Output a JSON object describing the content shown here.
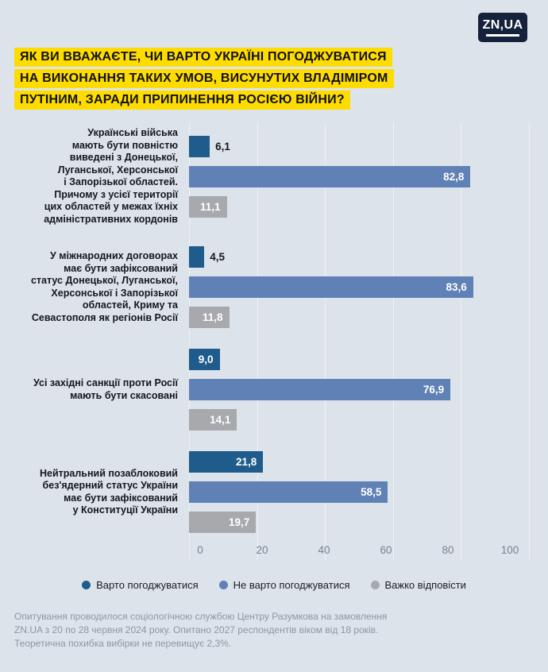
{
  "logo": {
    "text": "ZN,UA"
  },
  "title": {
    "highlight_color": "#ffdc00",
    "lines": [
      "ЯК ВИ ВВАЖАЄТЕ, ЧИ ВАРТО УКРАЇНІ ПОГОДЖУВАТИСЯ",
      "НА ВИКОНАННЯ ТАКИХ УМОВ, ВИСУНУТИХ ВЛАДІМІРОМ",
      "ПУТІНИМ, ЗАРАДИ ПРИПИНЕННЯ РОСІЄЮ ВІЙНИ?"
    ]
  },
  "chart_data": {
    "type": "bar",
    "orientation": "horizontal",
    "grid": true,
    "legend_position": "bottom",
    "inside_label_threshold": 8,
    "x_axis": {
      "min": 0,
      "max": 100,
      "ticks": [
        0,
        20,
        40,
        60,
        80,
        100
      ]
    },
    "categories": [
      "Українські війська мають бути повністю виведені з Донецької, Луганської, Херсонської і Запорізької областей. Причому з усієї території цих областей у межах їхніх адміністративних кордонів",
      "У міжнародних договорах має бути зафіксований статус Донецької, Луганської, Херсонської і Запорізької областей, Криму та Севастополя як регіонів Росії",
      "Усі західні санкції проти Росії мають бути скасовані",
      "Нейтральний позаблоковий без'ядерний статус України має бути зафіксований у Конституції України"
    ],
    "category_label_lines": [
      [
        "Українські війська",
        "мають бути повністю",
        "виведені з Донецької,",
        "Луганської, Херсонської",
        "і Запорізької областей.",
        "Причому з усієї території",
        "цих областей у межах їхніх",
        "адміністративних кордонів"
      ],
      [
        "У міжнародних договорах",
        "має бути зафіксований",
        "статус Донецької, Луганської,",
        "Херсонської і Запорізької",
        "областей, Криму та",
        "Севастополя як регіонів Росії"
      ],
      [
        "Усі західні санкції проти Росії",
        "мають бути скасовані"
      ],
      [
        "Нейтральний позаблоковий",
        "без'ядерний статус України",
        "має бути зафіксований",
        "у Конституції України"
      ]
    ],
    "series": [
      {
        "name": "Варто погоджуватися",
        "color": "#1f5c8c",
        "values": [
          6.1,
          4.5,
          9.0,
          21.8
        ],
        "value_labels": [
          "6,1",
          "4,5",
          "9,0",
          "21,8"
        ]
      },
      {
        "name": "Не варто погоджуватися",
        "color": "#6081b5",
        "values": [
          82.8,
          83.6,
          76.9,
          58.5
        ],
        "value_labels": [
          "82,8",
          "83,6",
          "76,9",
          "58,5"
        ]
      },
      {
        "name": "Важко відповісти",
        "color": "#a7a9ac",
        "values": [
          11.1,
          11.8,
          14.1,
          19.7
        ],
        "value_labels": [
          "11,1",
          "11,8",
          "14,1",
          "19,7"
        ]
      }
    ]
  },
  "footer": {
    "lines": [
      "Опитування проводилося соціологічною службою Центру Разумкова на замовлення",
      "ZN.UA з 20 по 28 червня 2024 року. Опитано 2027 респондентів віком від 18 років.",
      "Теоретична похибка вибірки не перевищує 2,3%."
    ]
  }
}
